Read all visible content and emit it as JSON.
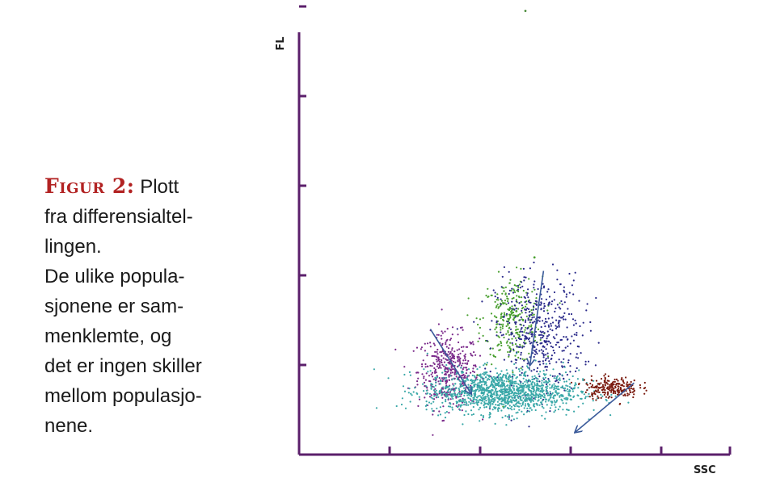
{
  "caption": {
    "figure_label": "Figur 2:",
    "lines": [
      "Plott",
      "fra differensialtel-",
      "lingen.",
      "De ulike popula-",
      "sjonene er sam-",
      "menklemte, og",
      "det er ingen skiller",
      "mellom populasjo-",
      "nene."
    ]
  },
  "chart_data": {
    "type": "scatter",
    "xlabel": "SSC",
    "ylabel": "FL",
    "xlim": [
      0,
      5
    ],
    "ylim": [
      0,
      5
    ],
    "x_ticks": [
      1,
      2,
      3,
      4
    ],
    "y_ticks": [
      1,
      2,
      3,
      4,
      5
    ],
    "axis_color": "#5b1f6b",
    "arrow_color": "#3a5a9a",
    "grid": false,
    "legend": "none",
    "clusters": [
      {
        "color": "#7a2a8a",
        "center": [
          1.65,
          0.93
        ],
        "spread": [
          0.28,
          0.35
        ],
        "count": 420
      },
      {
        "color": "#4aa030",
        "center": [
          2.35,
          1.5
        ],
        "spread": [
          0.28,
          0.4
        ],
        "count": 280
      },
      {
        "color": "#2a2a8a",
        "center": [
          2.65,
          1.35
        ],
        "spread": [
          0.4,
          0.55
        ],
        "count": 480
      },
      {
        "color": "#3aa8a8",
        "center": [
          2.25,
          0.7
        ],
        "spread": [
          0.7,
          0.2
        ],
        "count": 1300
      },
      {
        "color": "#7a1a0e",
        "center": [
          3.45,
          0.75
        ],
        "spread": [
          0.25,
          0.1
        ],
        "count": 220
      }
    ],
    "outliers": [
      {
        "x": 2.5,
        "y": 4.95,
        "color": "#4a8a3a"
      },
      {
        "x": 2.6,
        "y": 2.2,
        "color": "#4aa030"
      },
      {
        "x": 2.4,
        "y": 1.6,
        "color": "#4aa030"
      }
    ],
    "arrows": [
      {
        "from": [
          1.45,
          1.4
        ],
        "to": [
          1.9,
          0.68
        ]
      },
      {
        "from": [
          2.7,
          2.05
        ],
        "to": [
          2.55,
          1.0
        ]
      },
      {
        "from": [
          3.7,
          0.8
        ],
        "to": [
          3.05,
          0.25
        ]
      }
    ]
  }
}
